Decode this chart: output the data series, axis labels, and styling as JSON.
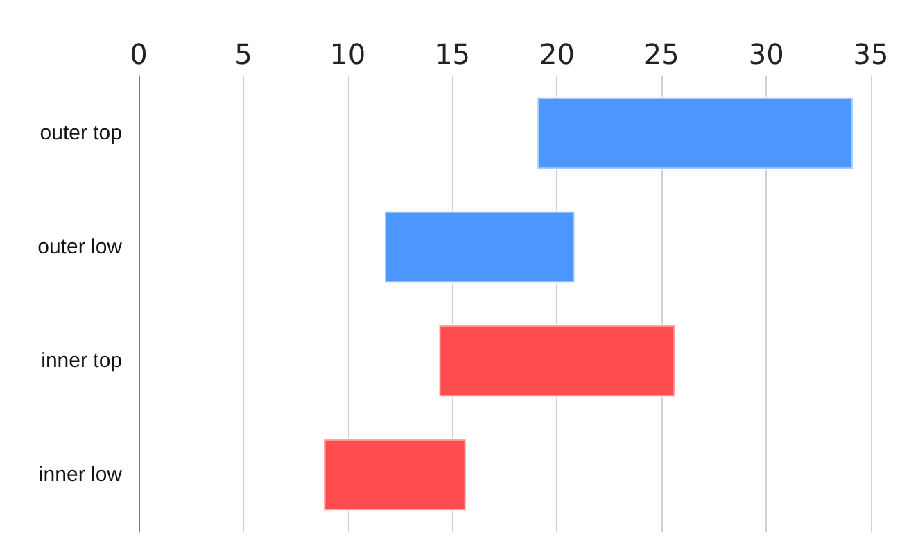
{
  "chart_data": {
    "type": "bar",
    "orientation": "horizontal",
    "categories": [
      "outer top",
      "outer low",
      "inner top",
      "inner low"
    ],
    "base": [
      19,
      11.7,
      14.3,
      8.8
    ],
    "values": [
      15.2,
      9.2,
      11.4,
      6.9
    ],
    "colors": [
      "#4d96ff",
      "#4d96ff",
      "#ff4d4f",
      "#ff4d4f"
    ],
    "xlim": [
      0,
      35
    ],
    "xticks": [
      0,
      5,
      10,
      15,
      20,
      25,
      30,
      35
    ],
    "grid": "x"
  }
}
